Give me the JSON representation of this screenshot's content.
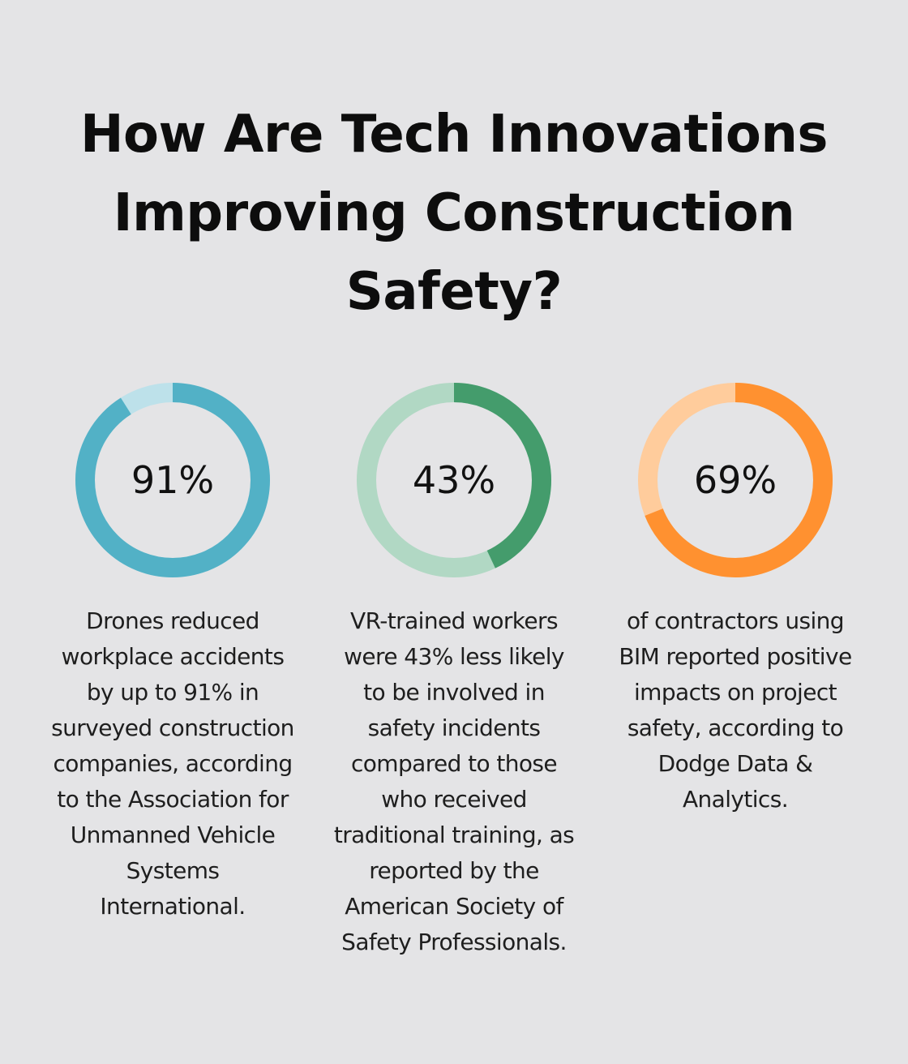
{
  "title": "How Are Tech Innovations Improving Construction Safety?",
  "chart_data": [
    {
      "type": "pie",
      "value": 91,
      "label": "91%",
      "colors": {
        "fill": "#52b1c6",
        "track": "#bde1ea"
      },
      "description": "Drones reduced workplace accidents by up to 91% in surveyed construction companies, according to the Association for Unmanned Vehicle Systems International."
    },
    {
      "type": "pie",
      "value": 43,
      "label": "43%",
      "colors": {
        "fill": "#449c6c",
        "track": "#b1d8c4"
      },
      "description": "VR-trained workers were 43% less likely to be involved in safety incidents compared to those who received traditional training, as reported by the American Society of Safety Professionals."
    },
    {
      "type": "pie",
      "value": 69,
      "label": "69%",
      "colors": {
        "fill": "#ff9130",
        "track": "#ffcc9c"
      },
      "description": "of contractors using BIM reported positive impacts on project safety, according to Dodge Data & Analytics."
    }
  ]
}
